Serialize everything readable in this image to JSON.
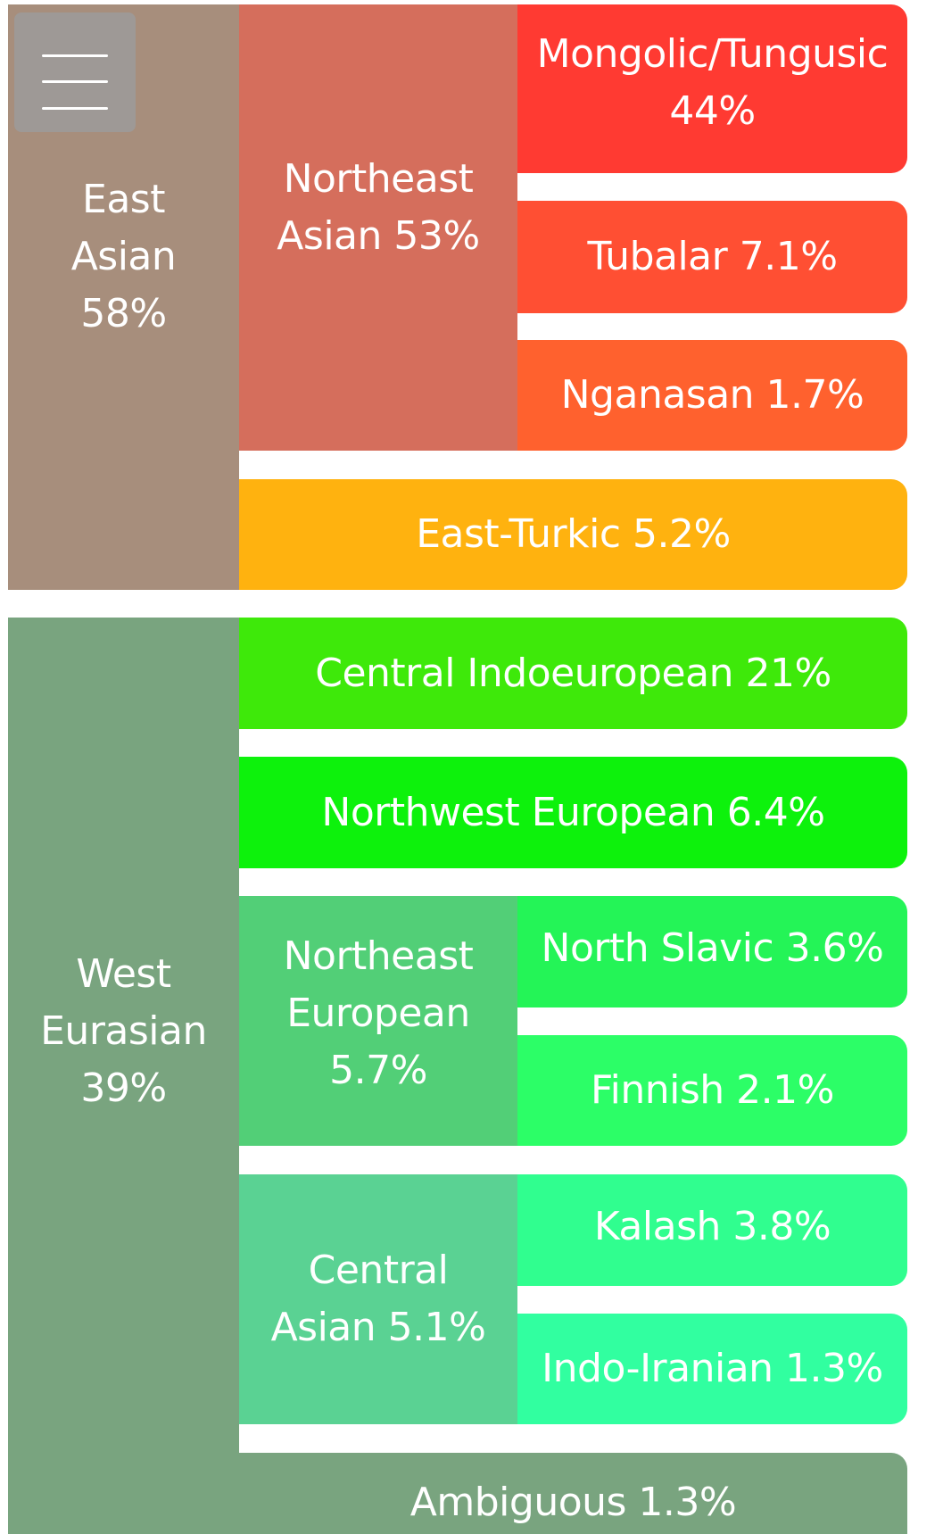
{
  "menu": {
    "icon": "hamburger-menu-icon"
  },
  "groups": {
    "east_asian": {
      "label": "East\nAsian\n58%",
      "color": "#a78e7c"
    },
    "northeast_asian": {
      "label": "Northeast\nAsian 53%",
      "color": "#d56e5c"
    },
    "mongolic_tungusic": {
      "label": "Mongolic/Tungusic\n44%",
      "color": "#ff3a32"
    },
    "tubalar": {
      "label": "Tubalar 7.1%",
      "color": "#ff4f33"
    },
    "nganasan": {
      "label": "Nganasan 1.7%",
      "color": "#ff612e"
    },
    "east_turkic": {
      "label": "East-Turkic 5.2%",
      "color": "#ffb20f"
    },
    "west_eurasian": {
      "label": "West\nEurasian\n39%",
      "color": "#79a47f"
    },
    "central_indoeuropean": {
      "label": "Central Indoeuropean 21%",
      "color": "#3ee90a"
    },
    "northwest_european": {
      "label": "Northwest European 6.4%",
      "color": "#0df20c"
    },
    "northeast_european": {
      "label": "Northeast\nEuropean\n5.7%",
      "color": "#52cf77"
    },
    "north_slavic": {
      "label": "North Slavic 3.6%",
      "color": "#24f457"
    },
    "finnish": {
      "label": "Finnish 2.1%",
      "color": "#2cfe67"
    },
    "central_asian": {
      "label": "Central\nAsian 5.1%",
      "color": "#5ad293"
    },
    "kalash": {
      "label": "Kalash 3.8%",
      "color": "#30fe8f"
    },
    "indo_iranian": {
      "label": "Indo-Iranian 1.3%",
      "color": "#31ffa0"
    },
    "ambiguous": {
      "label": "Ambiguous 1.3%",
      "color": "#79a47f"
    }
  }
}
